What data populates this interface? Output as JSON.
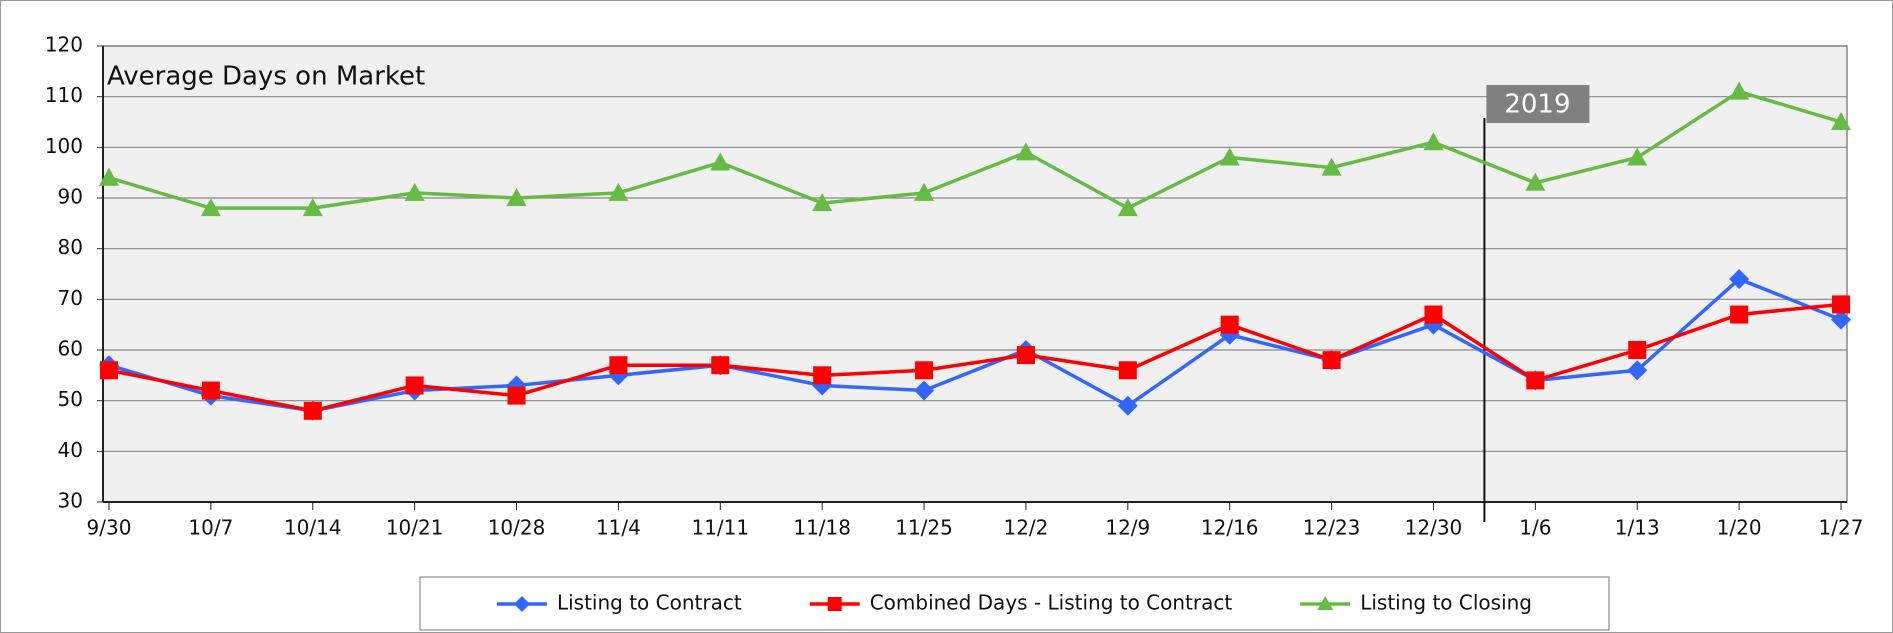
{
  "chart_data": {
    "type": "line",
    "title": "Average Days on Market",
    "categories": [
      "9/30",
      "10/7",
      "10/14",
      "10/21",
      "10/28",
      "11/4",
      "11/11",
      "11/18",
      "11/25",
      "12/2",
      "12/9",
      "12/16",
      "12/23",
      "12/30",
      "1/6",
      "1/13",
      "1/20",
      "1/27"
    ],
    "series": [
      {
        "name": "Listing to Contract",
        "color": "#3366ff",
        "marker": "diamond",
        "values": [
          57,
          51,
          48,
          52,
          53,
          55,
          57,
          53,
          52,
          60,
          49,
          63,
          58,
          65,
          54,
          56,
          74,
          66
        ]
      },
      {
        "name": "Combined Days - Listing to Contract",
        "color": "#ff0000",
        "marker": "square",
        "values": [
          56,
          52,
          48,
          53,
          51,
          57,
          57,
          55,
          56,
          59,
          56,
          65,
          58,
          67,
          54,
          60,
          67,
          69
        ]
      },
      {
        "name": "Listing to Closing",
        "color": "#66bb44",
        "marker": "triangle",
        "values": [
          94,
          88,
          88,
          91,
          90,
          91,
          97,
          89,
          91,
          99,
          88,
          98,
          96,
          101,
          93,
          98,
          111,
          105
        ]
      }
    ],
    "annotation": "2019",
    "ylim": [
      30,
      120
    ],
    "yticks": [
      30,
      40,
      50,
      60,
      70,
      80,
      90,
      100,
      110,
      120
    ],
    "grid": true,
    "legend": "bottom"
  }
}
